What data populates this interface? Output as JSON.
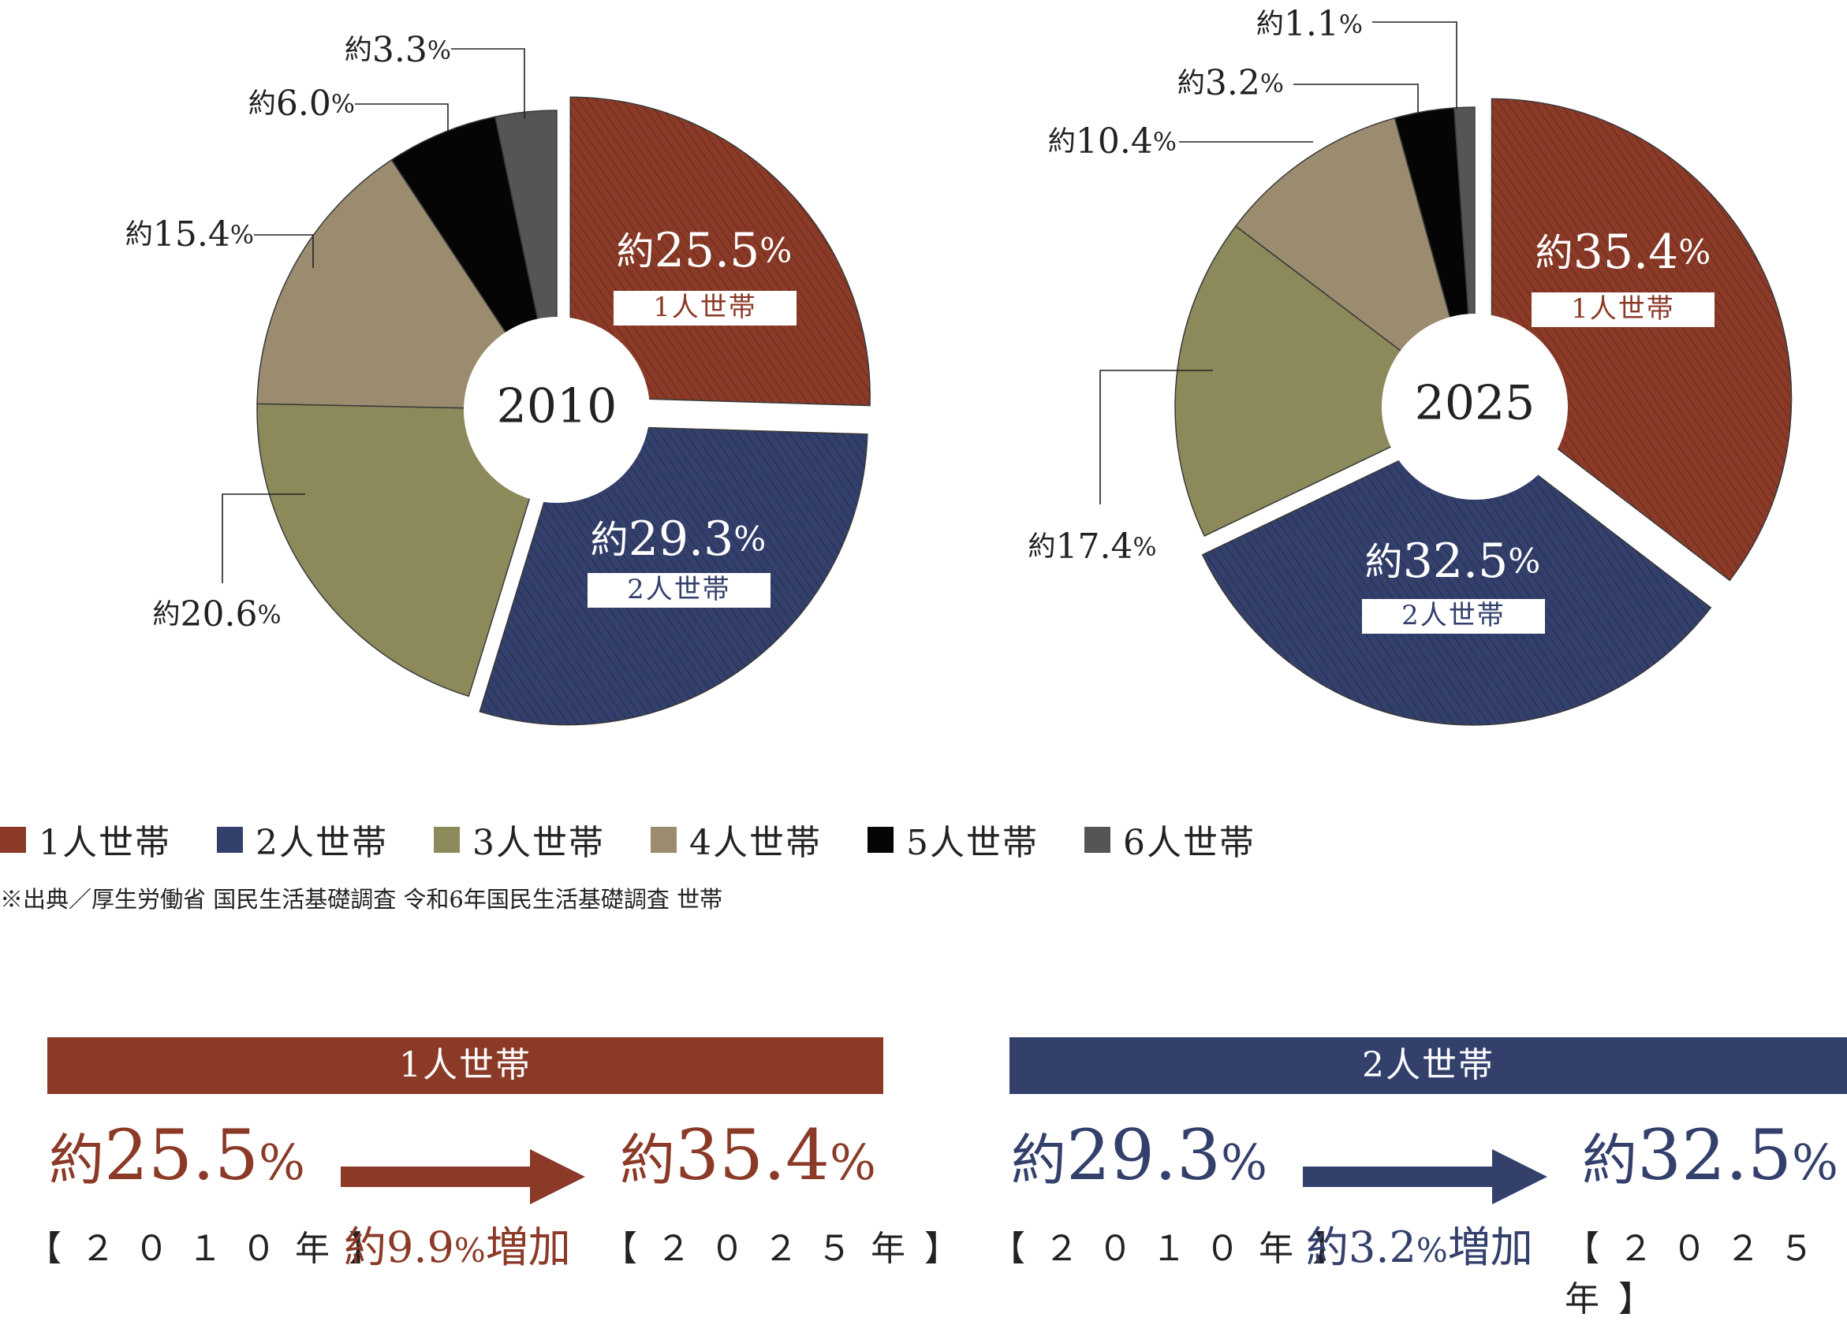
{
  "colors": {
    "one": "#8b3a27",
    "two": "#33406c",
    "three": "#8c8a5a",
    "four": "#9b8b6f",
    "five": "#050505",
    "six": "#555555"
  },
  "chart_data": [
    {
      "type": "pie",
      "center_label": "2010",
      "slices": [
        {
          "name": "1人世帯",
          "value": 25.5,
          "label": "約25.5%",
          "sublabel": "1人世帯",
          "color": "#8b3a27"
        },
        {
          "name": "2人世帯",
          "value": 29.3,
          "label": "約29.3%",
          "sublabel": "2人世帯",
          "color": "#33406c"
        },
        {
          "name": "3人世帯",
          "value": 20.6,
          "label": "約20.6%",
          "color": "#8c8a5a"
        },
        {
          "name": "4人世帯",
          "value": 15.4,
          "label": "約15.4%",
          "color": "#9b8b6f"
        },
        {
          "name": "5人世帯",
          "value": 6.0,
          "label": "約6.0%",
          "color": "#050505"
        },
        {
          "name": "6人世帯",
          "value": 3.3,
          "label": "約3.3%",
          "color": "#555555"
        }
      ]
    },
    {
      "type": "pie",
      "center_label": "2025",
      "slices": [
        {
          "name": "1人世帯",
          "value": 35.4,
          "label": "約35.4%",
          "sublabel": "1人世帯",
          "color": "#8b3a27"
        },
        {
          "name": "2人世帯",
          "value": 32.5,
          "label": "約32.5%",
          "sublabel": "2人世帯",
          "color": "#33406c"
        },
        {
          "name": "3人世帯",
          "value": 17.4,
          "label": "約17.4%",
          "color": "#8c8a5a"
        },
        {
          "name": "4人世帯",
          "value": 10.4,
          "label": "約10.4%",
          "color": "#9b8b6f"
        },
        {
          "name": "5人世帯",
          "value": 3.2,
          "label": "約3.2%",
          "color": "#050505"
        },
        {
          "name": "6人世帯",
          "value": 1.1,
          "label": "約1.1%",
          "color": "#555555"
        }
      ]
    }
  ],
  "legend": [
    {
      "label": "1人世帯",
      "color": "#8b3a27"
    },
    {
      "label": "2人世帯",
      "color": "#33406c"
    },
    {
      "label": "3人世帯",
      "color": "#8c8a5a"
    },
    {
      "label": "4人世帯",
      "color": "#9b8b6f"
    },
    {
      "label": "5人世帯",
      "color": "#050505"
    },
    {
      "label": "6人世帯",
      "color": "#555555"
    }
  ],
  "source": "※出典／厚生労働省 国民生活基礎調査 令和6年国民生活基礎調査 世帯",
  "summary": {
    "one": {
      "title": "1人世帯",
      "from_prefix": "約",
      "from_value": "25.5",
      "pct": "%",
      "from_year": "【２０１０年】",
      "to_prefix": "約",
      "to_value": "35.4",
      "to_year": "【２０２５年】",
      "inc_prefix": "約",
      "inc_value": "9.9",
      "inc_suffix": "増加"
    },
    "two": {
      "title": "2人世帯",
      "from_prefix": "約",
      "from_value": "29.3",
      "pct": "%",
      "from_year": "【２０１０年】",
      "to_prefix": "約",
      "to_value": "32.5",
      "to_year": "【２０２５年】",
      "inc_prefix": "約",
      "inc_value": "3.2",
      "inc_suffix": "増加"
    }
  }
}
